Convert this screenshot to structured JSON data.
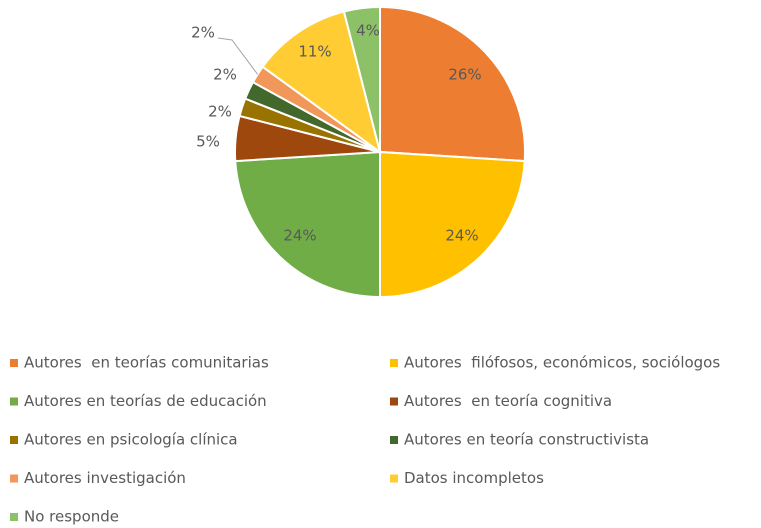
{
  "chart_data": {
    "type": "pie",
    "categories": [
      "Autores  en teorías comunitarias",
      "Autores  filófosos, económicos, sociólogos",
      "Autores en teorías de educación",
      "Autores  en teoría cognitiva",
      "Autores en psicología clínica",
      "Autores en teoría constructivista",
      "Autores investigación",
      "Datos incompletos",
      "No responde"
    ],
    "values": [
      26,
      24,
      24,
      5,
      2,
      2,
      2,
      11,
      4
    ],
    "value_labels": [
      "26%",
      "24%",
      "24%",
      "5%",
      "2%",
      "2%",
      "2%",
      "11%",
      "4%"
    ],
    "colors": [
      "#ED7D31",
      "#FFC000",
      "#70AD47",
      "#9E480E",
      "#997300",
      "#43682B",
      "#F1975A",
      "#FFCD33",
      "#8CC168"
    ],
    "legend": "bottom"
  }
}
